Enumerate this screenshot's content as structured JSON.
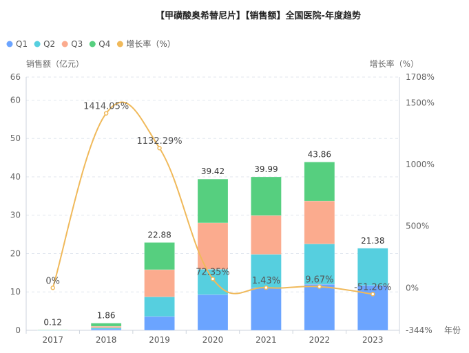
{
  "chart_data": {
    "type": "bar",
    "title": "【甲磺酸奥希替尼片】【销售额】全国医院-年度趋势",
    "ylabel": "销售额（亿元）",
    "y2label": "增长率（%）",
    "xlabel": "年份",
    "categories": [
      "2017",
      "2018",
      "2019",
      "2020",
      "2021",
      "2022",
      "2023"
    ],
    "ylim": [
      0,
      66
    ],
    "yticks": [
      0,
      10,
      20,
      30,
      40,
      50,
      60,
      66
    ],
    "y2lim": [
      -344,
      1708
    ],
    "y2ticks": [
      "-344%",
      "0%",
      "500%",
      "1000%",
      "1500%",
      "1708%"
    ],
    "y2tick_values": [
      -344,
      0,
      500,
      1000,
      1500,
      1708
    ],
    "grid": true,
    "legend_position": "top-left",
    "series": [
      {
        "name": "Q1",
        "type": "bar",
        "color": "#6ba4ff",
        "values": [
          0.03,
          0.35,
          3.6,
          9.3,
          11.1,
          12.0,
          11.7
        ]
      },
      {
        "name": "Q2",
        "type": "bar",
        "color": "#56cfdf",
        "values": [
          0.03,
          0.3,
          5.1,
          6.6,
          8.7,
          10.5,
          9.68
        ]
      },
      {
        "name": "Q3",
        "type": "bar",
        "color": "#fbab8e",
        "values": [
          0.03,
          0.4,
          7.1,
          12.1,
          10.1,
          11.2,
          0
        ]
      },
      {
        "name": "Q4",
        "type": "bar",
        "color": "#56cf7f",
        "values": [
          0.03,
          0.81,
          7.08,
          11.42,
          10.09,
          10.16,
          0
        ]
      },
      {
        "name": "增长率（%）",
        "type": "line",
        "color": "#f0b95a",
        "values": [
          0,
          1414.05,
          1132.29,
          72.35,
          1.43,
          9.67,
          -51.26
        ]
      }
    ],
    "totals": [
      "0.12",
      "1.86",
      "22.88",
      "39.42",
      "39.99",
      "43.86",
      "21.38"
    ],
    "growth_labels": [
      "0%",
      "1414.05%",
      "1132.29%",
      "72.35%",
      "1.43%",
      "9.67%",
      "-51.26%"
    ]
  }
}
